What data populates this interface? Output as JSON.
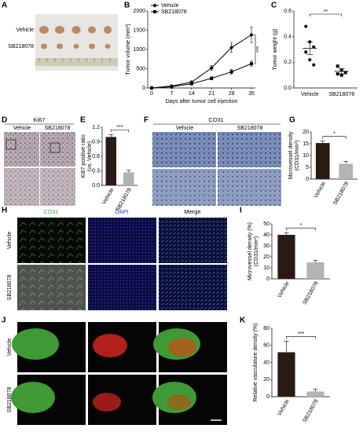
{
  "panels": {
    "A": {
      "letter": "A",
      "rows": [
        "Vehicle",
        "SB218078"
      ]
    },
    "D": {
      "letter": "D",
      "title": "Ki67",
      "cols": [
        "Vehicle",
        "SB218078"
      ]
    },
    "F": {
      "letter": "F",
      "title": "CD31",
      "cols": [
        "Vehicle",
        "SB218078"
      ]
    },
    "H": {
      "letter": "H",
      "cols": [
        "CD31",
        "DAPI",
        "Merge"
      ],
      "rows": [
        "Vehicle",
        "SB218078"
      ]
    },
    "J": {
      "letter": "J",
      "rows": [
        "Vehicle",
        "SB218078"
      ]
    }
  },
  "chart_data": [
    {
      "type": "line",
      "label": "B",
      "y_label": [
        "Tumor volume (mm³)"
      ],
      "x_label": "Days after tumor cell injection",
      "x": [
        0,
        7,
        14,
        21,
        28,
        35
      ],
      "xlim": [
        0,
        35
      ],
      "xticks": [
        0,
        7,
        14,
        21,
        28,
        35
      ],
      "ylim": [
        0,
        2000
      ],
      "yticks": [
        0,
        500,
        1000,
        1500,
        2000
      ],
      "series": [
        {
          "name": "Vehicle",
          "color": "#000000",
          "marker": "diamond",
          "values": [
            0,
            50,
            150,
            520,
            1050,
            1380
          ],
          "errors": [
            0,
            10,
            30,
            60,
            120,
            200
          ]
        },
        {
          "name": "SB218078",
          "color": "#000000",
          "marker": "square",
          "values": [
            0,
            30,
            110,
            250,
            420,
            630
          ],
          "errors": [
            0,
            10,
            20,
            40,
            60,
            70
          ]
        }
      ],
      "annotation": "***"
    },
    {
      "type": "dot",
      "label": "C",
      "y_label": [
        "Tumor weight (g)"
      ],
      "categories": [
        "Vehicle",
        "SB218078"
      ],
      "ylim": [
        0,
        0.6
      ],
      "yticks": [
        {
          "value": 0,
          "label": "0.0"
        },
        {
          "value": 0.2,
          "label": "0.2"
        },
        {
          "value": 0.4,
          "label": "0.4"
        },
        {
          "value": 0.6,
          "label": "0.6"
        }
      ],
      "points": [
        [
          0.48,
          0.36,
          0.32,
          0.28,
          0.22,
          0.18
        ],
        [
          0.17,
          0.14,
          0.12,
          0.11,
          0.1
        ]
      ],
      "means": [
        0.31,
        0.13
      ],
      "errors": [
        0.05,
        0.02
      ],
      "markers": [
        "circle",
        "square"
      ],
      "color": "#000000",
      "annotation": "**"
    },
    {
      "type": "bar",
      "label": "E",
      "y_label": [
        "Ki67 positive ratio",
        "(vs. Vehicle)"
      ],
      "categories": [
        "Vehicle",
        "SB218078"
      ],
      "ylim": [
        0,
        1.2
      ],
      "yticks": [
        {
          "value": 0,
          "label": "0.0"
        },
        {
          "value": 0.3,
          "label": "0.3"
        },
        {
          "value": 0.6,
          "label": "0.6"
        },
        {
          "value": 0.9,
          "label": "0.9"
        },
        {
          "value": 1.2,
          "label": "1.2"
        }
      ],
      "values": [
        1.0,
        0.27
      ],
      "errors": [
        0.05,
        0.04
      ],
      "colors": [
        "#2b1a14",
        "#b3b3b3"
      ],
      "annotation": "***"
    },
    {
      "type": "bar",
      "label": "G",
      "y_label": [
        "Microvessel density",
        "(CD31/mm²)"
      ],
      "categories": [
        "Vehicle",
        "SB218078"
      ],
      "ylim": [
        0,
        20
      ],
      "yticks": [
        0,
        5,
        10,
        15,
        20
      ],
      "values": [
        15.3,
        6.5
      ],
      "errors": [
        0.8,
        1.0
      ],
      "colors": [
        "#2b1a14",
        "#b3b3b3"
      ],
      "annotation": "*"
    },
    {
      "type": "bar",
      "label": "I",
      "y_label": [
        "Microvessel density (%)",
        "(CD31/mm²)"
      ],
      "categories": [
        "Vehicle",
        "SB218078"
      ],
      "ylim": [
        0,
        50
      ],
      "yticks": [
        0,
        10,
        20,
        30,
        40,
        50
      ],
      "values": [
        40,
        15
      ],
      "errors": [
        2,
        2
      ],
      "colors": [
        "#2b1a14",
        "#b3b3b3"
      ],
      "annotation": "*"
    },
    {
      "type": "bar",
      "label": "K",
      "y_label": [
        "Relative vasculature density (%)"
      ],
      "categories": [
        "Vehicle",
        "SB218078"
      ],
      "ylim": [
        0,
        80
      ],
      "yticks": [
        0,
        20,
        40,
        60,
        80
      ],
      "values": [
        52,
        6
      ],
      "errors": [
        13,
        3
      ],
      "colors": [
        "#2b1a14",
        "#b3b3b3"
      ],
      "annotation": "***"
    }
  ]
}
